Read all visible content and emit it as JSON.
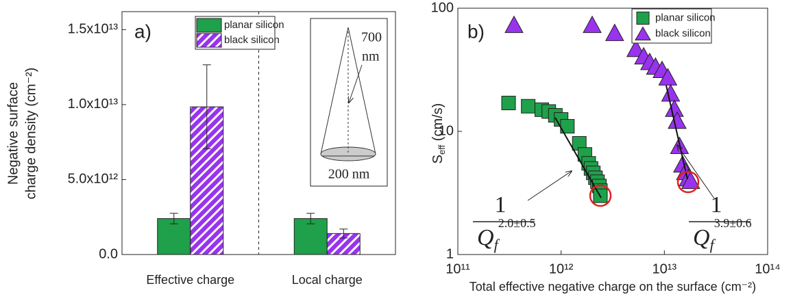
{
  "chart_data": [
    {
      "type": "bar",
      "panel_label": "a)",
      "ylabel": [
        "Negative surface",
        "charge density (cm⁻²)"
      ],
      "categories": [
        "Effective charge",
        "Local charge"
      ],
      "series": [
        {
          "name": "planar silicon",
          "color": "#1fa04a",
          "values": [
            2400000000000.0,
            2400000000000.0
          ],
          "errors": [
            350000000000.0,
            350000000000.0
          ]
        },
        {
          "name": "black silicon",
          "color": "#9933ee",
          "pattern": "hatch",
          "values": [
            9850000000000.0,
            1400000000000.0
          ],
          "errors": [
            2800000000000.0,
            300000000000.0
          ]
        }
      ],
      "ylim": [
        0,
        16200000000000.0
      ],
      "yticks": [
        {
          "value": 0,
          "label": "0.0"
        },
        {
          "value": 5000000000000.0,
          "label": "5.0x10¹²"
        },
        {
          "value": 10000000000000.0,
          "label": "1.0x10¹³"
        },
        {
          "value": 15000000000000.0,
          "label": "1.5x10¹³"
        }
      ],
      "legend": "top-center",
      "inset": {
        "height_label": [
          "700",
          "nm"
        ],
        "width_label": "200 nm"
      }
    },
    {
      "type": "scatter",
      "panel_label": "b)",
      "xscale": "log",
      "yscale": "log",
      "xlabel": "Total effective negative charge on the surface (cm⁻²)",
      "ylabel": {
        "main": "S",
        "sub": "eff",
        "unit": " (cm/s)"
      },
      "series": [
        {
          "name": "planar silicon",
          "color": "#1fa04a",
          "marker": "square",
          "x": [
            310000000000.0,
            480000000000.0,
            650000000000.0,
            760000000000.0,
            880000000000.0,
            1000000000000.0,
            1150000000000.0,
            1500000000000.0,
            1700000000000.0,
            1850000000000.0,
            1950000000000.0,
            2050000000000.0,
            2150000000000.0,
            2250000000000.0,
            2350000000000.0,
            2400000000000.0,
            2400000000000.0
          ],
          "values": [
            17,
            16,
            15,
            14.5,
            13.5,
            12.5,
            11,
            8,
            6.5,
            5.5,
            5,
            4.6,
            4.2,
            3.9,
            3.6,
            3.3,
            3.0
          ]
        },
        {
          "name": "black silicon",
          "color": "#9933ee",
          "marker": "triangle",
          "x": [
            350000000000.0,
            2000000000000.0,
            3300000000000.0,
            5300000000000.0,
            6300000000000.0,
            7200000000000.0,
            8200000000000.0,
            9500000000000.0,
            10800000000000.0,
            11500000000000.0,
            12500000000000.0,
            13300000000000.0,
            14000000000000.0,
            15000000000000.0,
            16000000000000.0,
            17000000000000.0,
            18000000000000.0
          ],
          "values": [
            72,
            72,
            62,
            46,
            40,
            36,
            33,
            31,
            27,
            20,
            15,
            12,
            7.5,
            5.3,
            4.6,
            4.1,
            3.9
          ]
        }
      ],
      "xlim": [
        100000000000.0,
        100000000000000.0
      ],
      "ylim": [
        1,
        100
      ],
      "xticks": [
        {
          "value": 100000000000.0,
          "label": "10¹¹"
        },
        {
          "value": 1000000000000.0,
          "label": "10¹²"
        },
        {
          "value": 10000000000000.0,
          "label": "10¹³"
        },
        {
          "value": 100000000000000.0,
          "label": "10¹⁴"
        }
      ],
      "yticks": [
        1,
        10,
        100
      ],
      "legend": "top-right",
      "annotations": [
        {
          "numerator": "1",
          "base": "Q",
          "sub": "f",
          "exponent": "2.0±0.5"
        },
        {
          "numerator": "1",
          "base": "Q",
          "sub": "f",
          "exponent": "3.9±0.6"
        }
      ]
    }
  ]
}
